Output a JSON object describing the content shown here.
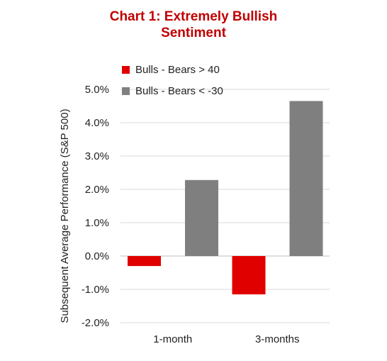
{
  "chart_data": {
    "type": "bar",
    "title_line1": "Chart 1: Extremely Bullish",
    "title_line2": "Sentiment",
    "ylabel": "Subsequent Average Performance (S&P 500)",
    "xlabel": "",
    "categories": [
      "1-month",
      "3-months"
    ],
    "series": [
      {
        "name": "Bulls - Bears > 40",
        "color": "#e00000",
        "values": [
          -0.3,
          -1.15
        ]
      },
      {
        "name": "Bulls - Bears < -30",
        "color": "#7f7f7f",
        "values": [
          2.28,
          4.65
        ]
      }
    ],
    "ylim": [
      -2.0,
      5.0
    ],
    "yticks": [
      5.0,
      4.0,
      3.0,
      2.0,
      1.0,
      0.0,
      -1.0,
      -2.0
    ],
    "ytick_labels": [
      "5.0%",
      "4.0%",
      "3.0%",
      "2.0%",
      "1.0%",
      "0.0%",
      "-1.0%",
      "-2.0%"
    ],
    "grid": true,
    "legend_placement": "top-left"
  }
}
